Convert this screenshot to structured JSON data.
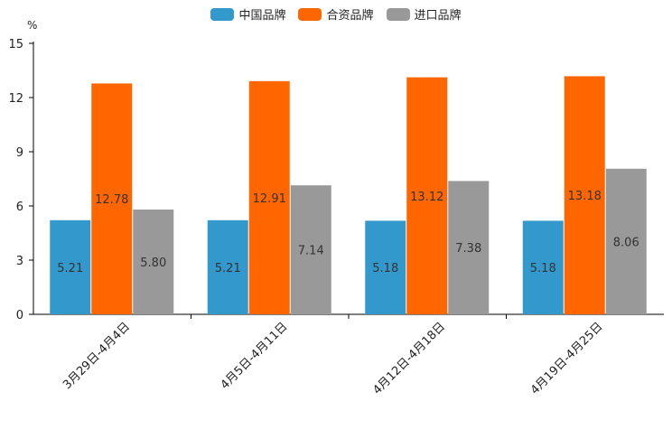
{
  "chart_data": {
    "type": "bar",
    "title": "",
    "unit_label": "%",
    "categories": [
      "3月29日-4月4日",
      "4月5日-4月11日",
      "4月12日-4月18日",
      "4月19日-4月25日"
    ],
    "series": [
      {
        "name": "中国品牌",
        "color": "#3399cc",
        "values": [
          5.21,
          5.21,
          5.18,
          5.18
        ]
      },
      {
        "name": "合资品牌",
        "color": "#ff6600",
        "values": [
          12.78,
          12.91,
          13.12,
          13.18
        ]
      },
      {
        "name": "进口品牌",
        "color": "#999999",
        "values": [
          5.8,
          7.14,
          7.38,
          8.06
        ]
      }
    ],
    "value_labels": [
      [
        "5.21",
        "5.21",
        "5.18",
        "5.18"
      ],
      [
        "12.78",
        "12.91",
        "13.12",
        "13.18"
      ],
      [
        "5.80",
        "7.14",
        "7.38",
        "8.06"
      ]
    ],
    "ylim": [
      0,
      15
    ],
    "yticks": [
      0,
      3,
      6,
      9,
      12,
      15
    ],
    "ytick_labels": [
      "0",
      "3",
      "6",
      "9",
      "12",
      "15"
    ],
    "legend_position": "top-center",
    "grid": false
  }
}
